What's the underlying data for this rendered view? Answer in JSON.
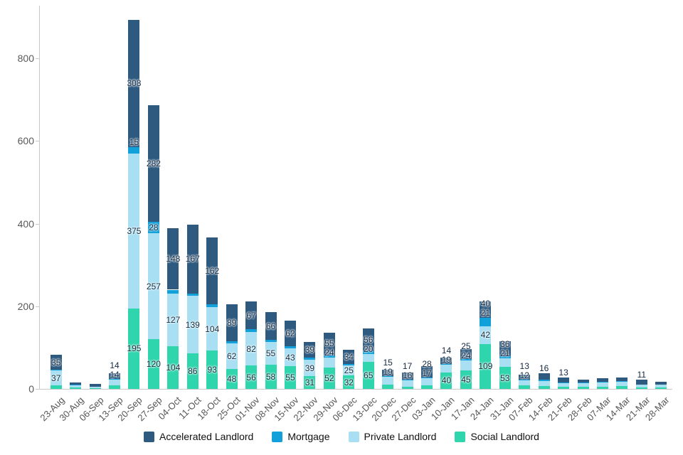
{
  "chart_data": {
    "type": "bar",
    "stacked": true,
    "title": "",
    "xlabel": "",
    "ylabel": "",
    "ylim": [
      0,
      900
    ],
    "grid": false,
    "legend_position": "bottom",
    "categories": [
      "23-Aug",
      "30-Aug",
      "06-Sep",
      "13-Sep",
      "20-Sep",
      "27-Sep",
      "04-Oct",
      "11-Oct",
      "18-Oct",
      "25-Oct",
      "01-Nov",
      "08-Nov",
      "15-Nov",
      "22-Nov",
      "29-Nov",
      "06-Dec",
      "13-Dec",
      "20-Dec",
      "27-Dec",
      "03-Jan",
      "10-Jan",
      "17-Jan",
      "24-Jan",
      "31-Jan",
      "07-Feb",
      "14-Feb",
      "21-Feb",
      "28-Feb",
      "07-Mar",
      "14-Mar",
      "21-Mar",
      "28-Mar"
    ],
    "y_axis": {
      "ticks": [
        0,
        200,
        400,
        600,
        800
      ]
    },
    "series": [
      {
        "name": "Social Landlord",
        "color": "#2fd5ac",
        "values": [
          8,
          4,
          2,
          8,
          195,
          120,
          104,
          86,
          93,
          48,
          56,
          58,
          55,
          31,
          52,
          32,
          65,
          10,
          5,
          8,
          40,
          45,
          109,
          53,
          8,
          7,
          5,
          5,
          6,
          7,
          4,
          4
        ],
        "labels": [
          null,
          null,
          null,
          null,
          "195",
          "120",
          "104",
          "86",
          "93",
          "48",
          "56",
          "58",
          "55",
          "31",
          "52",
          "32",
          "65",
          null,
          null,
          null,
          "40",
          "45",
          "109",
          "53",
          null,
          null,
          null,
          null,
          null,
          null,
          null,
          null
        ]
      },
      {
        "name": "Private Landlord",
        "color": "#a8dff2",
        "values": [
          37,
          5,
          3,
          14,
          375,
          257,
          127,
          139,
          104,
          62,
          82,
          55,
          43,
          39,
          24,
          25,
          20,
          19,
          16,
          17,
          19,
          24,
          42,
          21,
          12,
          12,
          8,
          8,
          9,
          10,
          6,
          6
        ],
        "labels": [
          "37",
          null,
          null,
          "14",
          "375",
          "257",
          "127",
          "139",
          "104",
          "62",
          "82",
          "55",
          "43",
          "39",
          "24",
          "25",
          "20",
          "19",
          "16",
          "17",
          "19",
          "24",
          "42",
          "21",
          "12",
          null,
          null,
          null,
          null,
          null,
          null,
          null
        ]
      },
      {
        "name": "Mortgage",
        "color": "#12a0da",
        "values": [
          2,
          1,
          1,
          2,
          15,
          28,
          9,
          6,
          7,
          6,
          6,
          6,
          6,
          5,
          5,
          3,
          6,
          2,
          1,
          2,
          2,
          3,
          21,
          5,
          2,
          3,
          2,
          2,
          2,
          2,
          1,
          1
        ],
        "labels": [
          null,
          null,
          null,
          null,
          "15",
          "28",
          null,
          null,
          null,
          null,
          null,
          null,
          null,
          null,
          null,
          null,
          null,
          null,
          null,
          null,
          null,
          null,
          "21",
          null,
          null,
          null,
          null,
          null,
          null,
          null,
          null,
          null
        ]
      },
      {
        "name": "Accelerated Landlord",
        "color": "#2e5a80",
        "values": [
          35,
          6,
          6,
          14,
          308,
          282,
          148,
          167,
          162,
          89,
          67,
          66,
          62,
          39,
          55,
          34,
          56,
          15,
          17,
          28,
          14,
          25,
          40,
          36,
          13,
          16,
          13,
          7,
          8,
          9,
          11,
          7
        ],
        "labels": [
          "35",
          null,
          null,
          "14",
          "308",
          "282",
          "148",
          "167",
          "162",
          "89",
          "67",
          "66",
          "62",
          "39",
          "55",
          "34",
          "56",
          "15",
          "17",
          "28",
          "14",
          "25",
          "40",
          "36",
          "13",
          "16",
          "13",
          null,
          null,
          null,
          "11",
          null
        ]
      }
    ],
    "legend": [
      "Accelerated Landlord",
      "Mortgage",
      "Private Landlord",
      "Social Landlord"
    ]
  }
}
